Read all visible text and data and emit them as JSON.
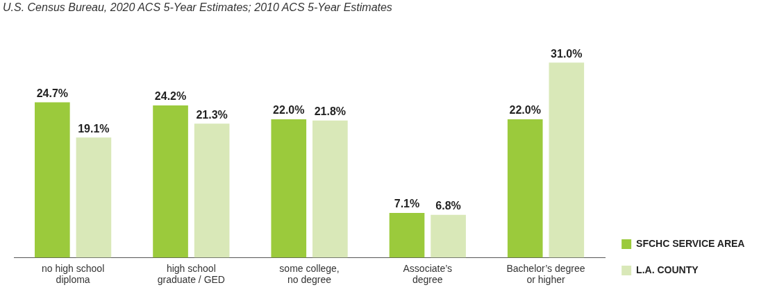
{
  "chart_data": {
    "type": "bar",
    "annotations": [
      "U.S. Census Bureau, 2020 ACS 5-Year Estimates; 2010 ACS 5-Year Estimates"
    ],
    "categories": [
      "no high school diploma",
      "high school graduate / GED",
      "some college, no degree",
      "Associate’s degree",
      "Bachelor’s degree or higher"
    ],
    "series": [
      {
        "name": "SFCHC SERVICE AREA",
        "color": "#9bca3c",
        "values": [
          24.7,
          24.2,
          22.0,
          7.1,
          22.0
        ],
        "value_labels": [
          "24.7%",
          "24.2%",
          "22.0%",
          "7.1%",
          "22.0%"
        ]
      },
      {
        "name": "L.A. COUNTY",
        "color": "#d9e8b8",
        "values": [
          19.1,
          21.3,
          21.8,
          6.8,
          31.0
        ],
        "value_labels": [
          "19.1%",
          "21.3%",
          "21.8%",
          "6.8%",
          "31.0%"
        ]
      }
    ],
    "legend": "right",
    "grid": false
  }
}
